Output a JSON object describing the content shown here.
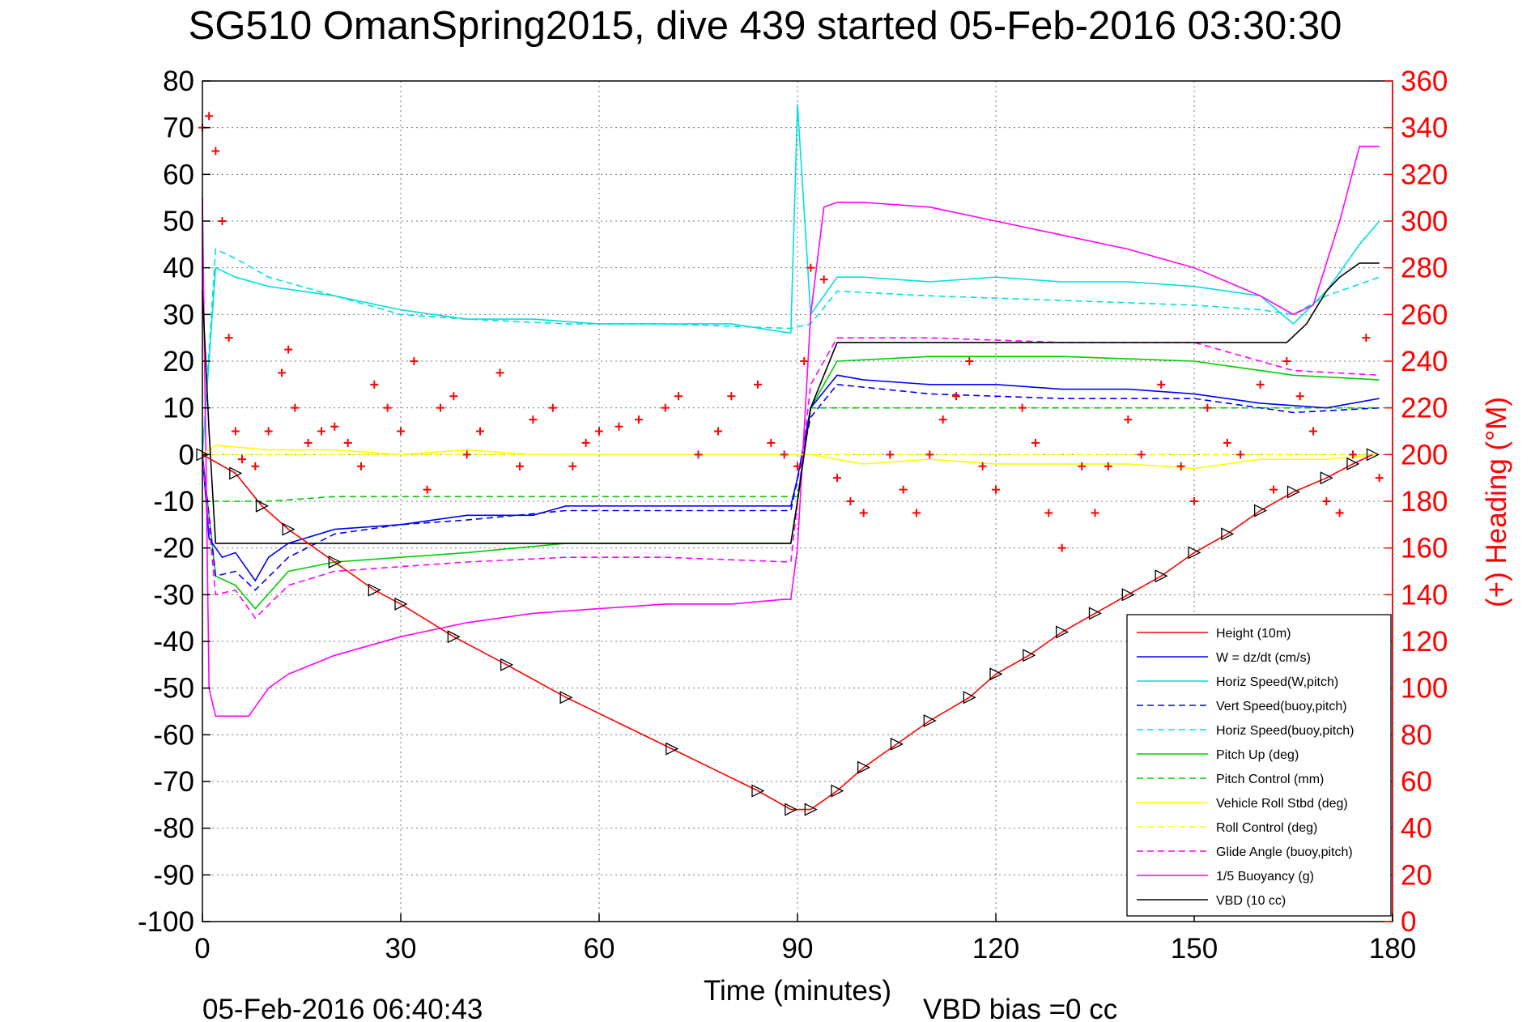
{
  "title": "SG510 OmanSpring2015, dive 439 started 05-Feb-2016 03:30:30",
  "footer_left": "05-Feb-2016 06:40:43",
  "footer_right": "VBD bias =0 cc",
  "chart_data": {
    "type": "line",
    "xlabel": "Time (minutes)",
    "ylabel": "",
    "y2label": "(+) Heading (°M)",
    "xlim": [
      0,
      180
    ],
    "ylim": [
      -100,
      80
    ],
    "y2lim": [
      0,
      360
    ],
    "xticks": [
      0,
      30,
      60,
      90,
      120,
      150,
      180
    ],
    "yticks": [
      -100,
      -90,
      -80,
      -70,
      -60,
      -50,
      -40,
      -30,
      -20,
      -10,
      0,
      10,
      20,
      30,
      40,
      50,
      60,
      70,
      80
    ],
    "y2ticks": [
      0,
      20,
      40,
      60,
      80,
      100,
      120,
      140,
      160,
      180,
      200,
      220,
      240,
      260,
      280,
      300,
      320,
      340,
      360
    ],
    "grid": true,
    "legend_position": "bottom-right",
    "series": [
      {
        "name": "Height (10m)",
        "color": "#ff0000",
        "style": "solid",
        "x": [
          0,
          5,
          9,
          13,
          20,
          26,
          30,
          38,
          46,
          55,
          71,
          84,
          89,
          92,
          96,
          100,
          105,
          110,
          116,
          120,
          125,
          130,
          135,
          140,
          145,
          150,
          155,
          160,
          165,
          170,
          174,
          177
        ],
        "y": [
          0,
          -4,
          -11,
          -16,
          -23,
          -29,
          -32,
          -39,
          -45,
          -52,
          -63,
          -72,
          -76,
          -76,
          -72,
          -67,
          -62,
          -57,
          -52,
          -47,
          -43,
          -38,
          -34,
          -30,
          -26,
          -21,
          -17,
          -12,
          -8,
          -5,
          -2,
          0
        ]
      },
      {
        "name": "W = dz/dt (cm/s)",
        "color": "#0000ff",
        "style": "solid",
        "x": [
          0,
          1,
          3,
          5,
          8,
          10,
          13,
          20,
          30,
          40,
          50,
          55,
          60,
          70,
          80,
          89,
          90,
          92,
          96,
          100,
          110,
          120,
          130,
          140,
          150,
          160,
          170,
          178
        ],
        "y": [
          0,
          -18,
          -22,
          -21,
          -27,
          -22,
          -19,
          -16,
          -15,
          -13,
          -13,
          -11,
          -11,
          -11,
          -11,
          -11,
          -5,
          10,
          17,
          16,
          15,
          15,
          14,
          14,
          13,
          11,
          10,
          12
        ]
      },
      {
        "name": "Horiz Speed(W,pitch)",
        "color": "#00e0e0",
        "style": "solid",
        "x": [
          0,
          2,
          5,
          10,
          20,
          30,
          40,
          50,
          60,
          70,
          80,
          89,
          90,
          92,
          96,
          100,
          110,
          120,
          130,
          140,
          150,
          160,
          165,
          170,
          175,
          178
        ],
        "y": [
          0,
          40,
          38,
          36,
          34,
          31,
          29,
          29,
          28,
          28,
          28,
          26,
          75,
          30,
          38,
          38,
          37,
          38,
          37,
          37,
          36,
          34,
          28,
          35,
          45,
          50
        ]
      },
      {
        "name": "Vert Speed(buoy,pitch)",
        "color": "#0000ff",
        "style": "dashed",
        "x": [
          0,
          2,
          5,
          8,
          13,
          20,
          30,
          40,
          55,
          70,
          89,
          92,
          96,
          110,
          130,
          150,
          165,
          178
        ],
        "y": [
          0,
          -26,
          -25,
          -29,
          -22,
          -17,
          -15,
          -14,
          -12,
          -12,
          -12,
          8,
          15,
          13,
          12,
          12,
          9,
          10
        ]
      },
      {
        "name": "Horiz Speed(buoy,pitch)",
        "color": "#00e0e0",
        "style": "dashed",
        "x": [
          0,
          2,
          5,
          10,
          20,
          30,
          40,
          55,
          70,
          89,
          92,
          96,
          110,
          130,
          150,
          160,
          165,
          170,
          178
        ],
        "y": [
          0,
          44,
          42,
          38,
          34,
          30,
          29,
          28,
          28,
          27,
          28,
          35,
          34,
          33,
          32,
          31,
          30,
          34,
          38
        ]
      },
      {
        "name": "Pitch Up (deg)",
        "color": "#00cc00",
        "style": "solid",
        "x": [
          0,
          2,
          5,
          8,
          13,
          20,
          30,
          40,
          55,
          70,
          89,
          90,
          92,
          96,
          110,
          130,
          150,
          165,
          178
        ],
        "y": [
          0,
          -26,
          -28,
          -33,
          -25,
          -23,
          -22,
          -21,
          -19,
          -19,
          -19,
          -10,
          10,
          20,
          21,
          21,
          20,
          17,
          16
        ]
      },
      {
        "name": "Pitch Control (mm)",
        "color": "#00cc00",
        "style": "dashed",
        "x": [
          0,
          1,
          10,
          20,
          40,
          60,
          89,
          90,
          92,
          96,
          120,
          150,
          178
        ],
        "y": [
          -10,
          -10,
          -10,
          -9,
          -9,
          -9,
          -9,
          -9,
          10,
          10,
          10,
          10,
          10
        ]
      },
      {
        "name": "Vehicle Roll Stbd (deg)",
        "color": "#ffff00",
        "style": "solid",
        "x": [
          0,
          2,
          10,
          20,
          30,
          40,
          50,
          60,
          70,
          80,
          89,
          92,
          100,
          110,
          120,
          130,
          140,
          150,
          160,
          170,
          178
        ],
        "y": [
          0,
          2,
          1,
          1,
          0,
          1,
          0,
          0,
          0,
          0,
          0,
          0,
          -2,
          -1,
          -2,
          -2,
          -2,
          -3,
          -1,
          -1,
          0
        ]
      },
      {
        "name": "Roll Control (deg)",
        "color": "#ffff00",
        "style": "dashed",
        "x": [
          0,
          90,
          92,
          178
        ],
        "y": [
          0,
          0,
          0,
          0
        ]
      },
      {
        "name": "Glide Angle (buoy,pitch)",
        "color": "#ff00ff",
        "style": "dashed",
        "x": [
          0,
          2,
          5,
          8,
          13,
          20,
          30,
          40,
          55,
          70,
          89,
          92,
          96,
          110,
          130,
          150,
          165,
          178
        ],
        "y": [
          0,
          -30,
          -29,
          -35,
          -28,
          -25,
          -24,
          -23,
          -22,
          -22,
          -23,
          15,
          25,
          25,
          24,
          24,
          18,
          17
        ]
      },
      {
        "name": "1/5 Buoyancy (g)",
        "color": "#ff00ff",
        "style": "solid",
        "x": [
          0,
          1,
          2,
          7,
          10,
          13,
          20,
          30,
          40,
          50,
          60,
          70,
          80,
          88,
          89,
          90,
          92,
          94,
          96,
          100,
          110,
          120,
          130,
          140,
          150,
          160,
          165,
          168,
          172,
          175,
          178
        ],
        "y": [
          55,
          -50,
          -56,
          -56,
          -50,
          -47,
          -43,
          -39,
          -36,
          -34,
          -33,
          -32,
          -32,
          -31,
          -31,
          -20,
          30,
          53,
          54,
          54,
          53,
          50,
          47,
          44,
          40,
          34,
          30,
          32,
          50,
          66,
          66
        ]
      },
      {
        "name": "VBD (10 cc)",
        "color": "#000000",
        "style": "solid",
        "x": [
          0,
          1,
          2,
          10,
          20,
          40,
          60,
          80,
          89,
          90,
          92,
          96,
          120,
          150,
          160,
          164,
          167,
          170,
          172,
          175,
          178
        ],
        "y": [
          35,
          5,
          -19,
          -19,
          -19,
          -19,
          -19,
          -19,
          -19,
          -10,
          10,
          24,
          24,
          24,
          24,
          24,
          28,
          35,
          38,
          41,
          41
        ]
      },
      {
        "name": "Heading",
        "color": "#ff0000",
        "style": "markers",
        "axis": "right",
        "x": [
          0,
          1,
          2,
          3,
          4,
          5,
          6,
          8,
          10,
          12,
          13,
          14,
          16,
          18,
          20,
          22,
          24,
          26,
          28,
          30,
          32,
          34,
          36,
          38,
          40,
          42,
          45,
          48,
          50,
          53,
          56,
          58,
          60,
          63,
          66,
          70,
          72,
          75,
          78,
          80,
          84,
          86,
          88,
          90,
          91,
          92,
          94,
          96,
          98,
          100,
          104,
          106,
          108,
          110,
          112,
          114,
          116,
          118,
          120,
          124,
          126,
          128,
          130,
          133,
          135,
          137,
          140,
          142,
          145,
          148,
          150,
          152,
          155,
          157,
          160,
          162,
          164,
          166,
          168,
          170,
          172,
          174,
          176,
          178
        ],
        "y": [
          340,
          345,
          330,
          300,
          250,
          210,
          198,
          195,
          210,
          235,
          245,
          220,
          205,
          210,
          212,
          205,
          195,
          230,
          220,
          210,
          240,
          185,
          220,
          225,
          200,
          210,
          235,
          195,
          215,
          220,
          195,
          205,
          210,
          212,
          215,
          220,
          225,
          200,
          210,
          225,
          230,
          205,
          200,
          195,
          240,
          280,
          275,
          190,
          180,
          175,
          200,
          185,
          175,
          200,
          215,
          225,
          240,
          195,
          185,
          220,
          205,
          175,
          160,
          195,
          175,
          195,
          215,
          200,
          230,
          195,
          180,
          220,
          205,
          200,
          230,
          185,
          240,
          225,
          210,
          180,
          175,
          200,
          250,
          190
        ]
      }
    ]
  }
}
